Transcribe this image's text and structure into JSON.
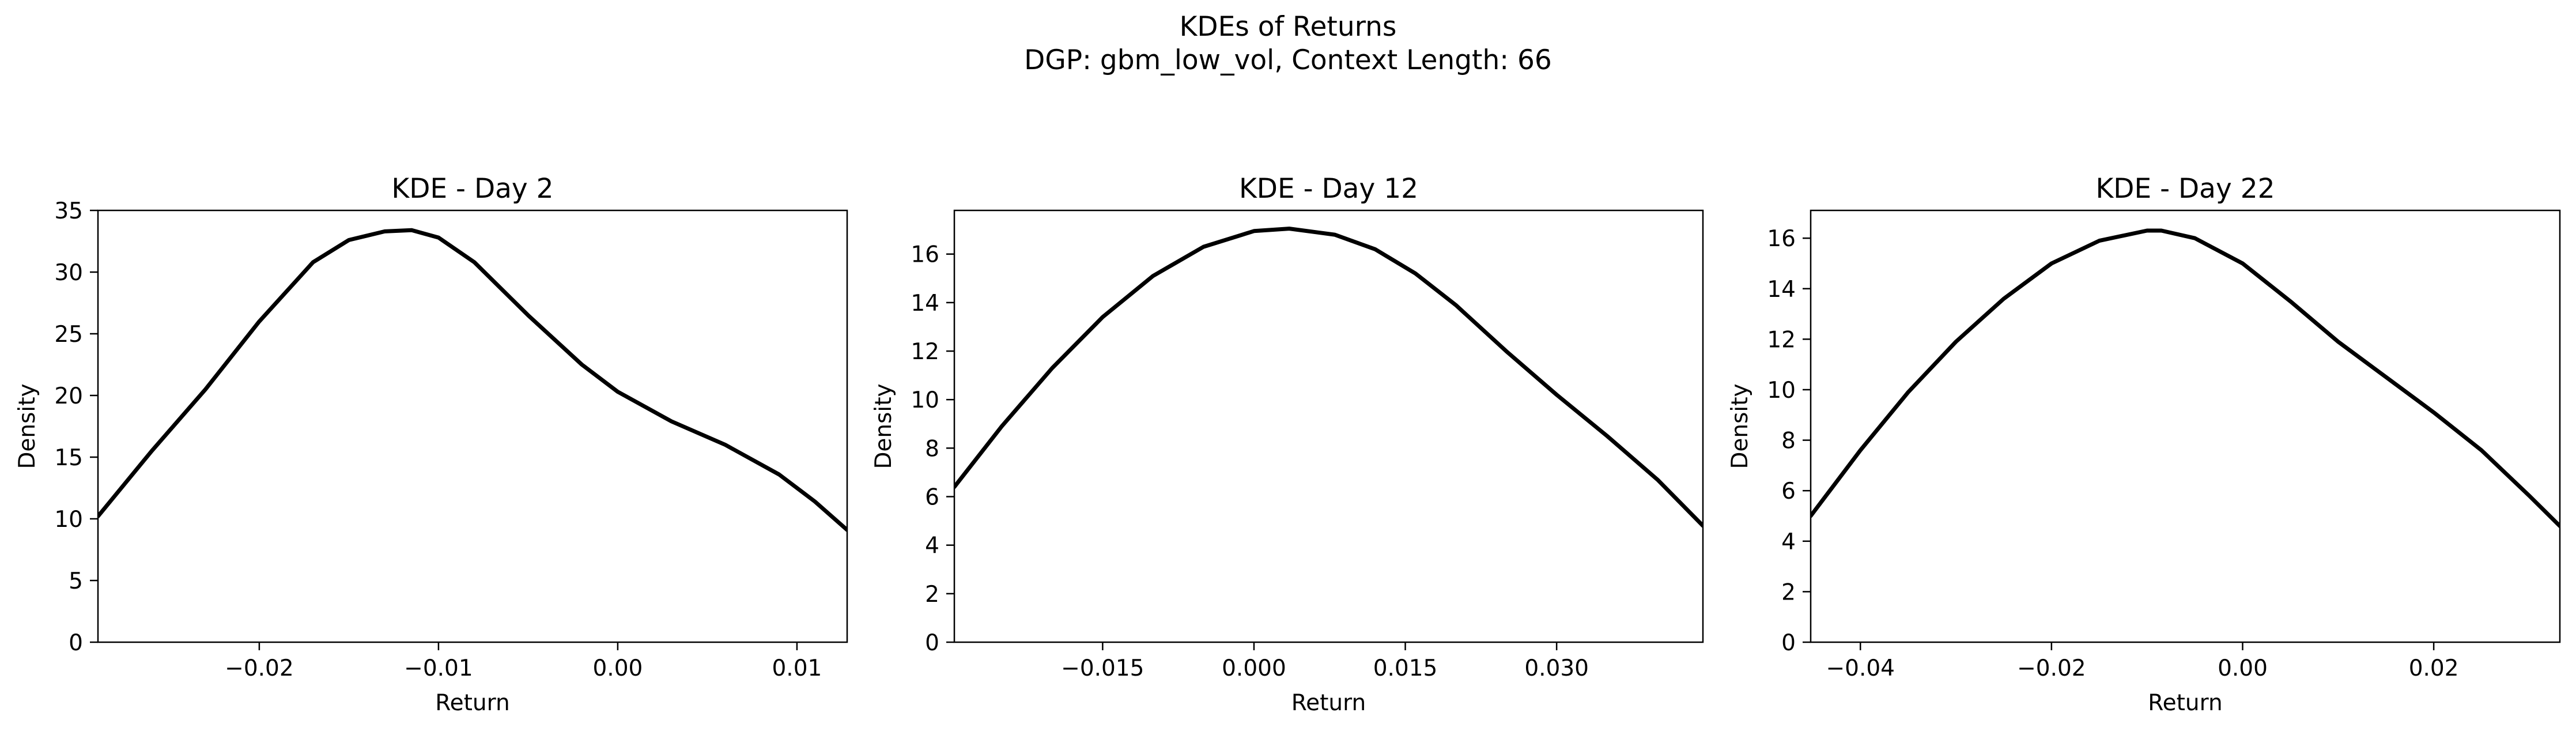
{
  "figure": {
    "suptitle_line1": "KDEs of Returns",
    "suptitle_line2": "DGP: gbm_low_vol, Context Length: 66",
    "line_color": "#000000"
  },
  "chart_data": [
    {
      "type": "line",
      "title": "KDE - Day 2",
      "xlabel": "Return",
      "ylabel": "Density",
      "xlim": [
        -0.029,
        0.0128
      ],
      "ylim": [
        0,
        35
      ],
      "xticks": [
        -0.02,
        -0.01,
        0.0,
        0.01
      ],
      "xtick_labels": [
        "−0.02",
        "−0.01",
        "0.00",
        "0.01"
      ],
      "yticks": [
        0,
        5,
        10,
        15,
        20,
        25,
        30,
        35
      ],
      "ytick_labels": [
        "0",
        "5",
        "10",
        "15",
        "20",
        "25",
        "30",
        "35"
      ],
      "series": [
        {
          "x": [
            -0.029,
            -0.026,
            -0.023,
            -0.02,
            -0.017,
            -0.015,
            -0.013,
            -0.0115,
            -0.01,
            -0.008,
            -0.005,
            -0.002,
            0.0,
            0.003,
            0.006,
            0.009,
            0.011,
            0.0128
          ],
          "y": [
            10.2,
            15.5,
            20.5,
            26.0,
            30.8,
            32.6,
            33.3,
            33.4,
            32.8,
            30.8,
            26.5,
            22.5,
            20.3,
            17.9,
            16.0,
            13.6,
            11.4,
            9.1
          ]
        }
      ]
    },
    {
      "type": "line",
      "title": "KDE - Day 12",
      "xlabel": "Return",
      "ylabel": "Density",
      "xlim": [
        -0.0297,
        0.0445
      ],
      "ylim": [
        0,
        17.8
      ],
      "xticks": [
        -0.015,
        0.0,
        0.015,
        0.03
      ],
      "xtick_labels": [
        "−0.015",
        "0.000",
        "0.015",
        "0.030"
      ],
      "yticks": [
        0,
        2,
        4,
        6,
        8,
        10,
        12,
        14,
        16
      ],
      "ytick_labels": [
        "0",
        "2",
        "4",
        "6",
        "8",
        "10",
        "12",
        "14",
        "16"
      ],
      "series": [
        {
          "x": [
            -0.0297,
            -0.025,
            -0.02,
            -0.015,
            -0.01,
            -0.005,
            0.0,
            0.0035,
            0.008,
            0.012,
            0.016,
            0.02,
            0.025,
            0.03,
            0.035,
            0.04,
            0.0445
          ],
          "y": [
            6.4,
            8.9,
            11.3,
            13.4,
            15.1,
            16.3,
            16.95,
            17.05,
            16.8,
            16.2,
            15.2,
            13.9,
            12.0,
            10.2,
            8.5,
            6.7,
            4.8
          ]
        }
      ]
    },
    {
      "type": "line",
      "title": "KDE - Day 22",
      "xlabel": "Return",
      "ylabel": "Density",
      "xlim": [
        -0.0452,
        0.0332
      ],
      "ylim": [
        0,
        17.1
      ],
      "xticks": [
        -0.04,
        -0.02,
        0.0,
        0.02
      ],
      "xtick_labels": [
        "−0.04",
        "−0.02",
        "0.00",
        "0.02"
      ],
      "yticks": [
        0,
        2,
        4,
        6,
        8,
        10,
        12,
        14,
        16
      ],
      "ytick_labels": [
        "0",
        "2",
        "4",
        "6",
        "8",
        "10",
        "12",
        "14",
        "16"
      ],
      "series": [
        {
          "x": [
            -0.0452,
            -0.04,
            -0.035,
            -0.03,
            -0.025,
            -0.02,
            -0.015,
            -0.01,
            -0.0085,
            -0.005,
            0.0,
            0.005,
            0.01,
            0.015,
            0.02,
            0.025,
            0.03,
            0.0332
          ],
          "y": [
            5.0,
            7.6,
            9.9,
            11.9,
            13.6,
            15.0,
            15.9,
            16.3,
            16.3,
            16.0,
            15.0,
            13.5,
            11.9,
            10.5,
            9.1,
            7.6,
            5.8,
            4.6
          ]
        }
      ]
    }
  ]
}
